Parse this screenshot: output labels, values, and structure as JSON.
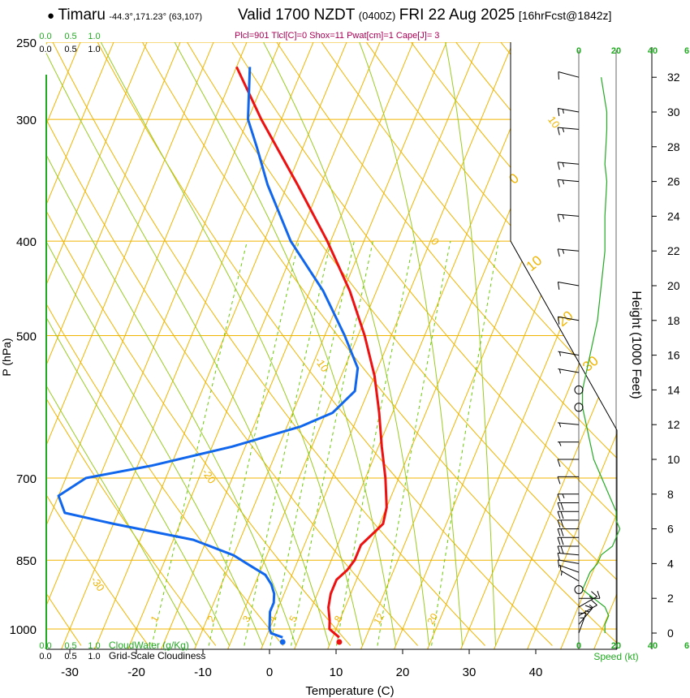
{
  "header": {
    "station_dot": "●",
    "station": "Timaru",
    "coords": "-44.3°,171.23° (63,107)",
    "valid": "Valid 1700 NZDT",
    "valid_utc": "(0400Z)",
    "date": "FRI 22 Aug 2025",
    "forecast": "[16hrFcst@1842z]",
    "indices": "Plcl=901 Tlcl[C]=0 Shox=11 Pwat[cm]=1 Cape[J]= 3"
  },
  "colors": {
    "isotherm": "#f0b400",
    "dry_adiabat": "#f0b400",
    "moist_adiabat": "#99cc22",
    "mixing_ratio": "#66cc00",
    "temperature": "#ee1111",
    "dewpoint": "#1166ee",
    "height_line": "#22aa22",
    "tropo_line": "#000000",
    "accent_text": "#aa0055"
  },
  "chart_data": {
    "type": "skew-t",
    "title": "Timaru Valid 1700 NZDT FRI 22 Aug 2025",
    "xlabel": "Temperature (C)",
    "ylabel": "P (hPa)",
    "y2label": "Height (1000 Feet)",
    "xlim": [
      -33,
      48
    ],
    "ylim_hpa": [
      1020,
      250
    ],
    "x_ticks": [
      -30,
      -20,
      -10,
      0,
      10,
      20,
      30,
      40
    ],
    "pressure_ticks": [
      1000,
      850,
      700,
      500,
      400,
      300,
      250
    ],
    "height_ticks_kft": [
      0,
      2,
      4,
      6,
      8,
      10,
      12,
      14,
      16,
      18,
      20,
      22,
      24,
      26,
      28,
      30,
      32
    ],
    "isotherm_labels": [
      "10",
      "0",
      "-10",
      "-20",
      "-30"
    ],
    "isotherm_label_values": [
      10,
      0,
      -10,
      -20,
      -30
    ],
    "isotherm_label_pressures": [
      300,
      400,
      530,
      690,
      890
    ],
    "theta_labels": [
      "0",
      "10",
      "20",
      "30"
    ],
    "theta_label_pressures": [
      350,
      430,
      490,
      545
    ],
    "mixing_labels": [
      "1",
      "2",
      "3",
      "4",
      "5",
      "8",
      "12",
      "20"
    ],
    "mixing_values": [
      1,
      2,
      3,
      4,
      5,
      8,
      12,
      20
    ],
    "temperature": {
      "name": "Temperature",
      "points": [
        [
          1020,
          11
        ],
        [
          1010,
          10
        ],
        [
          1000,
          9
        ],
        [
          980,
          8.5
        ],
        [
          950,
          7.5
        ],
        [
          920,
          7
        ],
        [
          890,
          7
        ],
        [
          870,
          8
        ],
        [
          850,
          8.5
        ],
        [
          820,
          8.5
        ],
        [
          800,
          9.5
        ],
        [
          780,
          10.5
        ],
        [
          750,
          10
        ],
        [
          700,
          8
        ],
        [
          650,
          5.5
        ],
        [
          600,
          3
        ],
        [
          550,
          0
        ],
        [
          500,
          -4
        ],
        [
          450,
          -9
        ],
        [
          400,
          -15.5
        ],
        [
          350,
          -23.5
        ],
        [
          300,
          -33
        ],
        [
          265,
          -40
        ]
      ]
    },
    "dewpoint": {
      "name": "Dewpoint",
      "points": [
        [
          1020,
          2.5
        ],
        [
          1010,
          0.5
        ],
        [
          1000,
          0
        ],
        [
          980,
          -0.5
        ],
        [
          960,
          -1
        ],
        [
          940,
          -1
        ],
        [
          920,
          -1.5
        ],
        [
          900,
          -2.5
        ],
        [
          880,
          -4
        ],
        [
          860,
          -7
        ],
        [
          840,
          -10
        ],
        [
          810,
          -17
        ],
        [
          780,
          -30
        ],
        [
          760,
          -38
        ],
        [
          730,
          -40
        ],
        [
          700,
          -37
        ],
        [
          680,
          -28
        ],
        [
          650,
          -17
        ],
        [
          620,
          -8
        ],
        [
          600,
          -4
        ],
        [
          570,
          -2
        ],
        [
          540,
          -3
        ],
        [
          500,
          -7
        ],
        [
          450,
          -13
        ],
        [
          400,
          -21
        ],
        [
          350,
          -28
        ],
        [
          320,
          -32
        ],
        [
          300,
          -35
        ],
        [
          265,
          -38
        ]
      ]
    },
    "cloud_scale": {
      "labels": [
        "0.0",
        "0.5",
        "1.0"
      ],
      "top_green_labels": [
        "0.0",
        "0.5",
        "1.0"
      ],
      "cloudwater_label": "CloudWater (g/Kg)",
      "cloudiness_label": "Grid-Scale Cloudiness"
    },
    "wind_speed": {
      "axis_labels": [
        "0",
        "20",
        "40",
        "6"
      ],
      "top_labels": [
        "0",
        "20",
        "40",
        "6"
      ],
      "label": "Speed (kt)",
      "levels_kft": [
        0,
        0.5,
        1,
        1.5,
        2,
        2.5,
        3,
        3.5,
        4,
        4.5,
        5,
        5.5,
        6,
        6.5,
        7,
        7.5,
        8,
        9,
        10,
        11,
        12,
        13,
        14,
        15,
        16,
        18,
        20,
        22,
        24,
        26,
        27,
        29,
        30,
        32
      ],
      "speed_kt": [
        14,
        14,
        16,
        14,
        8,
        2,
        4,
        6,
        10,
        12,
        18,
        20,
        22,
        20,
        20,
        18,
        16,
        12,
        8,
        6,
        4,
        2,
        2,
        4,
        6,
        10,
        12,
        14,
        14,
        15,
        14,
        15,
        15,
        12
      ],
      "direction_deg": [
        20,
        40,
        60,
        60,
        90,
        0,
        300,
        290,
        280,
        275,
        270,
        270,
        270,
        270,
        270,
        270,
        270,
        270,
        270,
        270,
        275,
        280,
        280,
        280,
        280,
        280,
        280,
        275,
        275,
        275,
        275,
        275,
        280,
        285
      ]
    }
  }
}
